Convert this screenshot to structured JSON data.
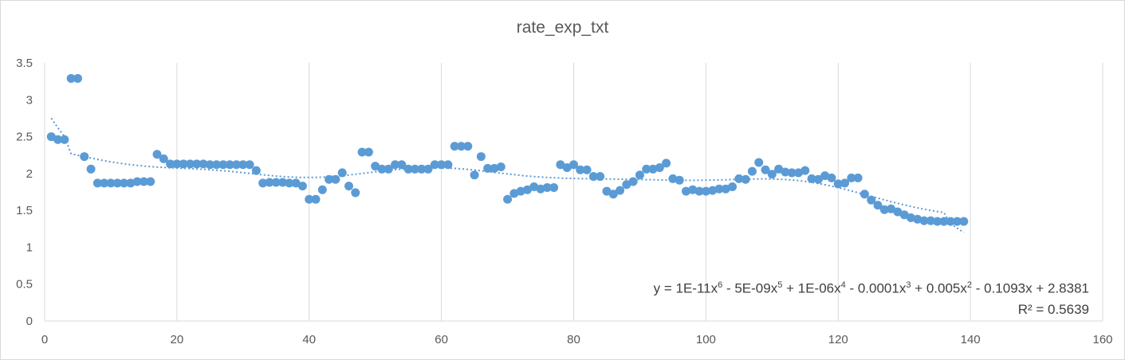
{
  "chart_data": {
    "type": "scatter",
    "title": "rate_exp_txt",
    "xlabel": "",
    "ylabel": "",
    "xlim": [
      0,
      160
    ],
    "ylim": [
      0,
      3.5
    ],
    "x_ticks": [
      0,
      20,
      40,
      60,
      80,
      100,
      120,
      140,
      160
    ],
    "y_ticks": [
      0,
      0.5,
      1,
      1.5,
      2,
      2.5,
      3,
      3.5
    ],
    "grid": {
      "vertical": true,
      "horizontal": false
    },
    "legend": "none",
    "colors": {
      "points": "#5b9bd5",
      "trendline": "#5b9bd5",
      "grid": "#d9d9d9",
      "text": "#595959"
    },
    "series": [
      {
        "points": [
          [
            1,
            2.5
          ],
          [
            2,
            2.46
          ],
          [
            3,
            2.46
          ],
          [
            4,
            3.29
          ],
          [
            5,
            3.29
          ],
          [
            6,
            2.23
          ],
          [
            7,
            2.06
          ],
          [
            8,
            1.87
          ],
          [
            9,
            1.87
          ],
          [
            10,
            1.87
          ],
          [
            11,
            1.87
          ],
          [
            12,
            1.87
          ],
          [
            13,
            1.87
          ],
          [
            14,
            1.89
          ],
          [
            15,
            1.89
          ],
          [
            16,
            1.89
          ],
          [
            17,
            2.26
          ],
          [
            18,
            2.2
          ],
          [
            19,
            2.13
          ],
          [
            20,
            2.13
          ],
          [
            21,
            2.13
          ],
          [
            22,
            2.13
          ],
          [
            23,
            2.13
          ],
          [
            24,
            2.13
          ],
          [
            25,
            2.12
          ],
          [
            26,
            2.12
          ],
          [
            27,
            2.12
          ],
          [
            28,
            2.12
          ],
          [
            29,
            2.12
          ],
          [
            30,
            2.12
          ],
          [
            31,
            2.12
          ],
          [
            32,
            2.04
          ],
          [
            33,
            1.87
          ],
          [
            34,
            1.88
          ],
          [
            35,
            1.88
          ],
          [
            36,
            1.88
          ],
          [
            37,
            1.87
          ],
          [
            38,
            1.87
          ],
          [
            39,
            1.83
          ],
          [
            40,
            1.65
          ],
          [
            41,
            1.65
          ],
          [
            42,
            1.78
          ],
          [
            43,
            1.92
          ],
          [
            44,
            1.92
          ],
          [
            45,
            2.01
          ],
          [
            46,
            1.83
          ],
          [
            47,
            1.74
          ],
          [
            48,
            2.29
          ],
          [
            49,
            2.29
          ],
          [
            50,
            2.1
          ],
          [
            51,
            2.06
          ],
          [
            52,
            2.06
          ],
          [
            53,
            2.12
          ],
          [
            54,
            2.12
          ],
          [
            55,
            2.06
          ],
          [
            56,
            2.06
          ],
          [
            57,
            2.06
          ],
          [
            58,
            2.06
          ],
          [
            59,
            2.12
          ],
          [
            60,
            2.12
          ],
          [
            61,
            2.12
          ],
          [
            62,
            2.37
          ],
          [
            63,
            2.37
          ],
          [
            64,
            2.37
          ],
          [
            65,
            1.98
          ],
          [
            66,
            2.23
          ],
          [
            67,
            2.07
          ],
          [
            68,
            2.07
          ],
          [
            69,
            2.09
          ],
          [
            70,
            1.65
          ],
          [
            71,
            1.73
          ],
          [
            72,
            1.76
          ],
          [
            73,
            1.78
          ],
          [
            74,
            1.82
          ],
          [
            75,
            1.79
          ],
          [
            76,
            1.81
          ],
          [
            77,
            1.81
          ],
          [
            78,
            2.12
          ],
          [
            79,
            2.08
          ],
          [
            80,
            2.12
          ],
          [
            81,
            2.05
          ],
          [
            82,
            2.05
          ],
          [
            83,
            1.96
          ],
          [
            84,
            1.96
          ],
          [
            85,
            1.76
          ],
          [
            86,
            1.72
          ],
          [
            87,
            1.77
          ],
          [
            88,
            1.85
          ],
          [
            89,
            1.89
          ],
          [
            90,
            1.98
          ],
          [
            91,
            2.06
          ],
          [
            92,
            2.06
          ],
          [
            93,
            2.08
          ],
          [
            94,
            2.14
          ],
          [
            95,
            1.93
          ],
          [
            96,
            1.91
          ],
          [
            97,
            1.76
          ],
          [
            98,
            1.78
          ],
          [
            99,
            1.76
          ],
          [
            100,
            1.76
          ],
          [
            101,
            1.77
          ],
          [
            102,
            1.79
          ],
          [
            103,
            1.79
          ],
          [
            104,
            1.82
          ],
          [
            105,
            1.93
          ],
          [
            106,
            1.92
          ],
          [
            107,
            2.03
          ],
          [
            108,
            2.15
          ],
          [
            109,
            2.05
          ],
          [
            110,
            1.99
          ],
          [
            111,
            2.06
          ],
          [
            112,
            2.02
          ],
          [
            113,
            2.01
          ],
          [
            114,
            2.01
          ],
          [
            115,
            2.04
          ],
          [
            116,
            1.93
          ],
          [
            117,
            1.92
          ],
          [
            118,
            1.97
          ],
          [
            119,
            1.94
          ],
          [
            120,
            1.86
          ],
          [
            121,
            1.87
          ],
          [
            122,
            1.94
          ],
          [
            123,
            1.94
          ],
          [
            124,
            1.72
          ],
          [
            125,
            1.64
          ],
          [
            126,
            1.57
          ],
          [
            127,
            1.51
          ],
          [
            128,
            1.52
          ],
          [
            129,
            1.48
          ],
          [
            130,
            1.44
          ],
          [
            131,
            1.4
          ],
          [
            132,
            1.38
          ],
          [
            133,
            1.36
          ],
          [
            134,
            1.36
          ],
          [
            135,
            1.35
          ],
          [
            136,
            1.35
          ],
          [
            137,
            1.35
          ],
          [
            138,
            1.35
          ],
          [
            139,
            1.35
          ]
        ]
      }
    ],
    "trendline": {
      "type": "polynomial",
      "order": 6,
      "style": "dotted",
      "x_range": [
        1,
        139
      ],
      "coefficients": [
        2.8381,
        -0.1093,
        0.005,
        -0.0001,
        1e-06,
        -5e-09,
        1e-11
      ],
      "equation_text": {
        "y": "y = 1E-11x",
        "e6": "6",
        "t5": " - 5E-09x",
        "e5": "5",
        "t4": " + 1E-06x",
        "e4": "4",
        "t3": " - 0.0001x",
        "e3": "3",
        "t2": " + 0.005x",
        "e2": "2",
        "t1": " - 0.1093x + 2.8381"
      },
      "r_squared_text": "R² = 0.5639"
    }
  }
}
